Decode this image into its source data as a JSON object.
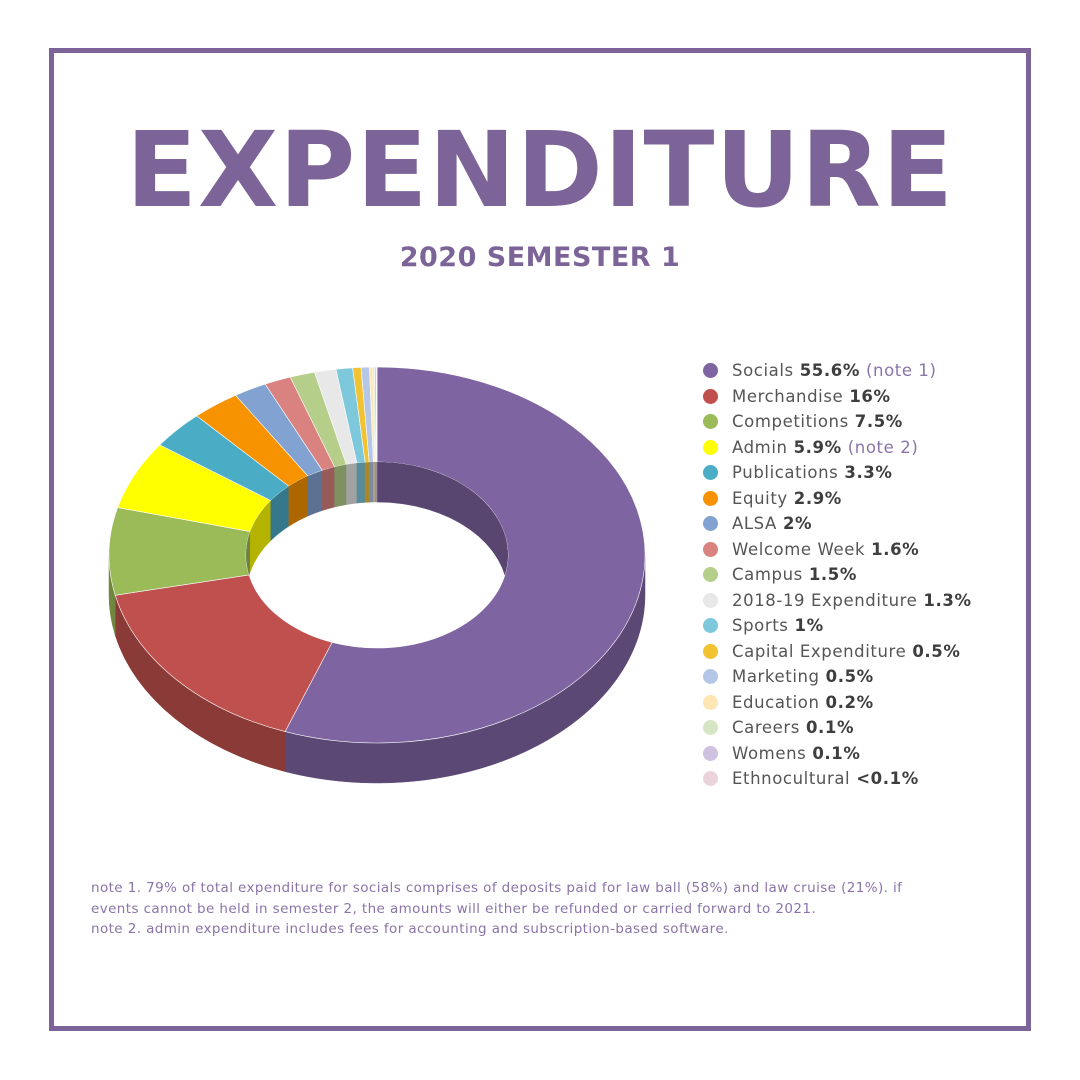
{
  "header": {
    "title": "EXPENDITURE",
    "subtitle": "2020 SEMESTER 1"
  },
  "chart_data": {
    "type": "pie",
    "donut": true,
    "three_d": true,
    "legend_position": "right",
    "slices": [
      {
        "label": "Socials",
        "value": 55.6,
        "display": "55.6%",
        "note": "(note 1)",
        "color": "#7e64a1"
      },
      {
        "label": "Merchandise",
        "value": 16,
        "display": "16%",
        "note": "",
        "color": "#c0504d"
      },
      {
        "label": "Competitions",
        "value": 7.5,
        "display": "7.5%",
        "note": "",
        "color": "#9bbb59"
      },
      {
        "label": "Admin",
        "value": 5.9,
        "display": "5.9%",
        "note": "(note 2)",
        "color": "#ffff00"
      },
      {
        "label": "Publications",
        "value": 3.3,
        "display": "3.3%",
        "note": "",
        "color": "#4bacc6"
      },
      {
        "label": "Equity",
        "value": 2.9,
        "display": "2.9%",
        "note": "",
        "color": "#f79200"
      },
      {
        "label": "ALSA",
        "value": 2,
        "display": "2%",
        "note": "",
        "color": "#82a3d1"
      },
      {
        "label": "Welcome Week",
        "value": 1.6,
        "display": "1.6%",
        "note": "",
        "color": "#d9827f"
      },
      {
        "label": "Campus",
        "value": 1.5,
        "display": "1.5%",
        "note": "",
        "color": "#b5cf8a"
      },
      {
        "label": "2018-19 Expenditure",
        "value": 1.3,
        "display": "1.3%",
        "note": "",
        "color": "#e8e8e8"
      },
      {
        "label": "Sports",
        "value": 1,
        "display": "1%",
        "note": "",
        "color": "#7ec8dc"
      },
      {
        "label": "Capital Expenditure",
        "value": 0.5,
        "display": "0.5%",
        "note": "",
        "color": "#f1c232"
      },
      {
        "label": "Marketing",
        "value": 0.5,
        "display": "0.5%",
        "note": "",
        "color": "#b4c7e7"
      },
      {
        "label": "Education",
        "value": 0.2,
        "display": "0.2%",
        "note": "",
        "color": "#fde6b4"
      },
      {
        "label": "Careers",
        "value": 0.1,
        "display": "0.1%",
        "note": "",
        "color": "#d6e6c5"
      },
      {
        "label": "Womens",
        "value": 0.1,
        "display": "0.1%",
        "note": "",
        "color": "#cfc2e0"
      },
      {
        "label": "Ethnocultural",
        "value": 0.05,
        "display": "<0.1%",
        "note": "",
        "color": "#ebd3dc"
      }
    ]
  },
  "notes": [
    "note 1. 79% of total expenditure for socials comprises of deposits paid for law ball (58%) and law cruise (21%). if",
    "events cannot be held in semester 2, the amounts will either be refunded or carried forward to 2021.",
    "note 2. admin expenditure includes fees for accounting and subscription-based software."
  ]
}
